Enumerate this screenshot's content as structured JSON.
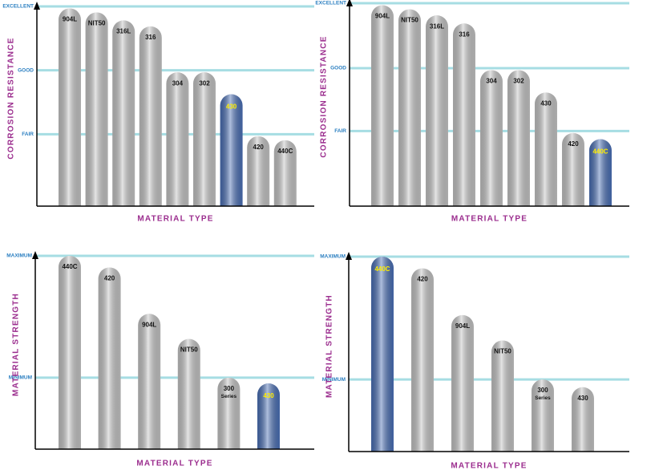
{
  "chart_data": [
    {
      "type": "bar",
      "y_label": "CORROSION RESISTANCE",
      "x_label": "MATERIAL TYPE",
      "categories": [
        "904L",
        "NIT50",
        "316L",
        "316",
        "304",
        "302",
        "430",
        "420",
        "440C"
      ],
      "values": [
        99,
        97,
        93,
        90,
        67,
        67,
        56,
        35,
        33
      ],
      "colors": [
        "#c4c4c4",
        "#c4c4c4",
        "#c4c4c4",
        "#c4c4c4",
        "#c4c4c4",
        "#c4c4c4",
        "#4a6fb5",
        "#c4c4c4",
        "#c4c4c4"
      ],
      "ylim": [
        0,
        100
      ],
      "yticks": [
        {
          "value": 36,
          "label": "FAIR"
        },
        {
          "value": 68,
          "label": "GOOD"
        },
        {
          "value": 100,
          "label": "EXCELLENT"
        }
      ],
      "grid": true
    },
    {
      "type": "bar",
      "y_label": "CORROSION RESISTANCE",
      "x_label": "MATERIAL TYPE",
      "categories": [
        "904L",
        "NIT50",
        "316L",
        "316",
        "304",
        "302",
        "430",
        "420",
        "440C"
      ],
      "values": [
        99,
        97,
        94,
        90,
        67,
        67,
        56,
        36,
        33
      ],
      "colors": [
        "#c4c4c4",
        "#c4c4c4",
        "#c4c4c4",
        "#c4c4c4",
        "#c4c4c4",
        "#c4c4c4",
        "#c4c4c4",
        "#c4c4c4",
        "#4a6fb5"
      ],
      "ylim": [
        0,
        100
      ],
      "yticks": [
        {
          "value": 37,
          "label": "FAIR"
        },
        {
          "value": 68,
          "label": "GOOD"
        },
        {
          "value": 100,
          "label": "EXCELLENT"
        }
      ],
      "grid": true
    },
    {
      "type": "bar",
      "y_label": "MATERIAL STRENGTH",
      "x_label": "MATERIAL TYPE",
      "categories": [
        "440C",
        "420",
        "904L",
        "NIT50",
        "300 Series",
        "430"
      ],
      "values": [
        100,
        94,
        70,
        57,
        37,
        34
      ],
      "colors": [
        "#c4c4c4",
        "#c4c4c4",
        "#c4c4c4",
        "#c4c4c4",
        "#c4c4c4",
        "#4a6fb5"
      ],
      "ylim": [
        0,
        100
      ],
      "yticks": [
        {
          "value": 37,
          "label": "MINIMUM"
        },
        {
          "value": 100,
          "label": "MAXIMUM"
        }
      ],
      "grid": true
    },
    {
      "type": "bar",
      "y_label": "MATERIAL STRENGTH",
      "x_label": "MATERIAL TYPE",
      "categories": [
        "440C",
        "420",
        "904L",
        "NIT50",
        "300 Series",
        "430"
      ],
      "values": [
        100,
        94,
        70,
        57,
        37,
        33
      ],
      "colors": [
        "#4a6fb5",
        "#c4c4c4",
        "#c4c4c4",
        "#c4c4c4",
        "#c4c4c4",
        "#c4c4c4"
      ],
      "ylim": [
        0,
        100
      ],
      "yticks": [
        {
          "value": 37,
          "label": "MINIMUM"
        },
        {
          "value": 100,
          "label": "MAXIMUM"
        }
      ],
      "grid": true
    }
  ]
}
